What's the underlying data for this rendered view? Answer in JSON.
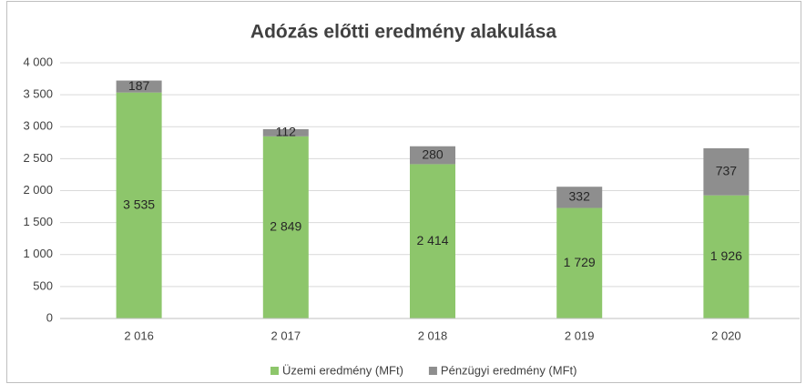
{
  "chart_data": {
    "type": "bar",
    "stacked": true,
    "title": "Adózás előtti eredmény alakulása",
    "categories": [
      "2 016",
      "2 017",
      "2 018",
      "2 019",
      "2 020"
    ],
    "series": [
      {
        "name": "Üzemi eredmény (MFt)",
        "color": "#8dc66b",
        "values": [
          3535,
          2849,
          2414,
          1729,
          1926
        ],
        "value_labels": [
          "3 535",
          "2 849",
          "2 414",
          "1 729",
          "1 926"
        ]
      },
      {
        "name": "Pénzügyi eredmény (MFt)",
        "color": "#8e8e8e",
        "values": [
          187,
          112,
          280,
          332,
          737
        ]
      }
    ],
    "ylim": [
      0,
      4000
    ],
    "yticks": [
      0,
      500,
      {
        "value": 1000,
        "label": "1 000"
      },
      {
        "value": 1500,
        "label": "1 500"
      },
      {
        "value": 2000,
        "label": "2 000"
      },
      {
        "value": 2500,
        "label": "2 500"
      },
      {
        "value": 3000,
        "label": "3 000"
      },
      {
        "value": 3500,
        "label": "3 500"
      },
      {
        "value": 4000,
        "label": "4 000"
      }
    ],
    "grid": true,
    "legend": "bottom"
  }
}
